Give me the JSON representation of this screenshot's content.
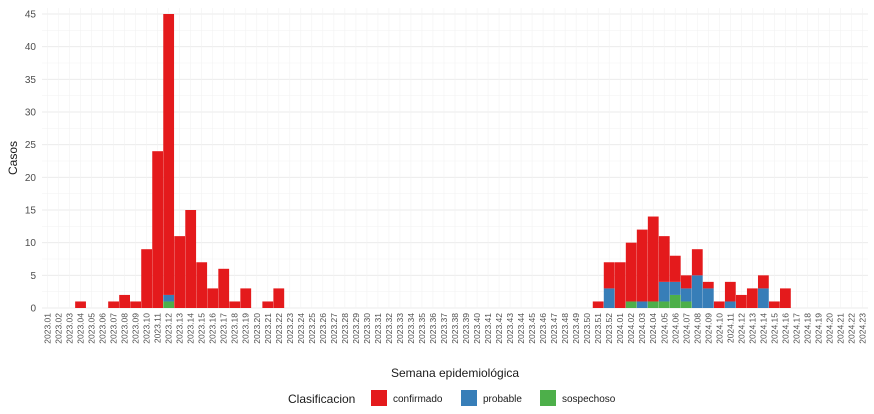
{
  "chart_data": {
    "type": "bar",
    "stacked": true,
    "xlabel": "Semana epidemiológica",
    "ylabel": "Casos",
    "ylim": [
      0,
      45
    ],
    "yticks": [
      0,
      5,
      10,
      15,
      20,
      25,
      30,
      35,
      40,
      45
    ],
    "grid": true,
    "legend": {
      "title": "Clasificacion",
      "position": "bottom"
    },
    "categories": [
      "2023.01",
      "2023.02",
      "2023.03",
      "2023.04",
      "2023.05",
      "2023.06",
      "2023.07",
      "2023.08",
      "2023.09",
      "2023.10",
      "2023.11",
      "2023.12",
      "2023.13",
      "2023.14",
      "2023.15",
      "2023.16",
      "2023.17",
      "2023.18",
      "2023.19",
      "2023.20",
      "2023.21",
      "2023.22",
      "2023.23",
      "2023.24",
      "2023.25",
      "2023.26",
      "2023.27",
      "2023.28",
      "2023.29",
      "2023.30",
      "2023.31",
      "2023.32",
      "2023.33",
      "2023.34",
      "2023.35",
      "2023.36",
      "2023.37",
      "2023.38",
      "2023.39",
      "2023.40",
      "2023.41",
      "2023.42",
      "2023.43",
      "2023.44",
      "2023.45",
      "2023.46",
      "2023.47",
      "2023.48",
      "2023.49",
      "2023.50",
      "2023.51",
      "2023.52",
      "2024.01",
      "2024.02",
      "2024.03",
      "2024.04",
      "2024.05",
      "2024.06",
      "2024.07",
      "2024.08",
      "2024.09",
      "2024.10",
      "2024.11",
      "2024.12",
      "2024.13",
      "2024.14",
      "2024.15",
      "2024.16",
      "2024.17",
      "2024.18",
      "2024.19",
      "2024.20",
      "2024.21",
      "2024.22",
      "2024.23"
    ],
    "series": [
      {
        "name": "sospechoso",
        "color": "#4daf4a",
        "values": [
          0,
          0,
          0,
          0,
          0,
          0,
          0,
          0,
          0,
          0,
          0,
          1,
          0,
          0,
          0,
          0,
          0,
          0,
          0,
          0,
          0,
          0,
          0,
          0,
          0,
          0,
          0,
          0,
          0,
          0,
          0,
          0,
          0,
          0,
          0,
          0,
          0,
          0,
          0,
          0,
          0,
          0,
          0,
          0,
          0,
          0,
          0,
          0,
          0,
          0,
          0,
          0,
          0,
          1,
          0,
          1,
          1,
          2,
          1,
          0,
          0,
          0,
          0,
          0,
          0,
          0,
          0,
          0,
          0,
          0,
          0,
          0,
          0,
          0,
          0
        ]
      },
      {
        "name": "probable",
        "color": "#377eb8",
        "values": [
          0,
          0,
          0,
          0,
          0,
          0,
          0,
          0,
          0,
          0,
          0,
          1,
          0,
          0,
          0,
          0,
          0,
          0,
          0,
          0,
          0,
          0,
          0,
          0,
          0,
          0,
          0,
          0,
          0,
          0,
          0,
          0,
          0,
          0,
          0,
          0,
          0,
          0,
          0,
          0,
          0,
          0,
          0,
          0,
          0,
          0,
          0,
          0,
          0,
          0,
          0,
          3,
          0,
          0,
          1,
          0,
          3,
          2,
          2,
          5,
          3,
          0,
          1,
          0,
          0,
          3,
          0,
          0,
          0,
          0,
          0,
          0,
          0,
          0,
          0
        ]
      },
      {
        "name": "confirmado",
        "color": "#e41a1c",
        "values": [
          0,
          0,
          0,
          1,
          0,
          0,
          1,
          2,
          1,
          9,
          24,
          43,
          11,
          15,
          7,
          3,
          6,
          1,
          3,
          0,
          1,
          3,
          0,
          0,
          0,
          0,
          0,
          0,
          0,
          0,
          0,
          0,
          0,
          0,
          0,
          0,
          0,
          0,
          0,
          0,
          0,
          0,
          0,
          0,
          0,
          0,
          0,
          0,
          0,
          0,
          1,
          4,
          7,
          9,
          11,
          13,
          7,
          4,
          2,
          4,
          1,
          1,
          3,
          2,
          3,
          2,
          1,
          3,
          0,
          0,
          0,
          0,
          0,
          0,
          0
        ]
      }
    ]
  }
}
